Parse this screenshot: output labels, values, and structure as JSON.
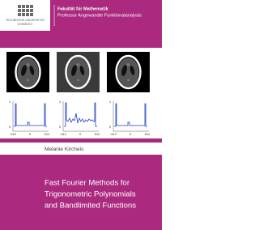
{
  "header": {
    "logo": [
      "TECHNISCHE UNIVERSITÄT",
      "CHEMNITZ"
    ],
    "faculty": "Fakultät für Mathematik",
    "chair": "Professur Angewandte Funktionalanalysis"
  },
  "figures": [
    {
      "y_ticks": [
        "1",
        "0"
      ],
      "x_ticks": [
        "-512",
        "0",
        "512"
      ]
    },
    {
      "y_ticks": [
        "1",
        "0"
      ],
      "x_ticks": [
        "-512",
        "0",
        "512"
      ]
    },
    {
      "y_ticks": [
        "1",
        "0"
      ],
      "x_ticks": [
        "-512",
        "0",
        "512"
      ]
    }
  ],
  "author": "Melanie Kircheis",
  "title": [
    "Fast Fourier Methods for",
    "Trigonometric Polynomials",
    "and Bandlimited Functions"
  ]
}
